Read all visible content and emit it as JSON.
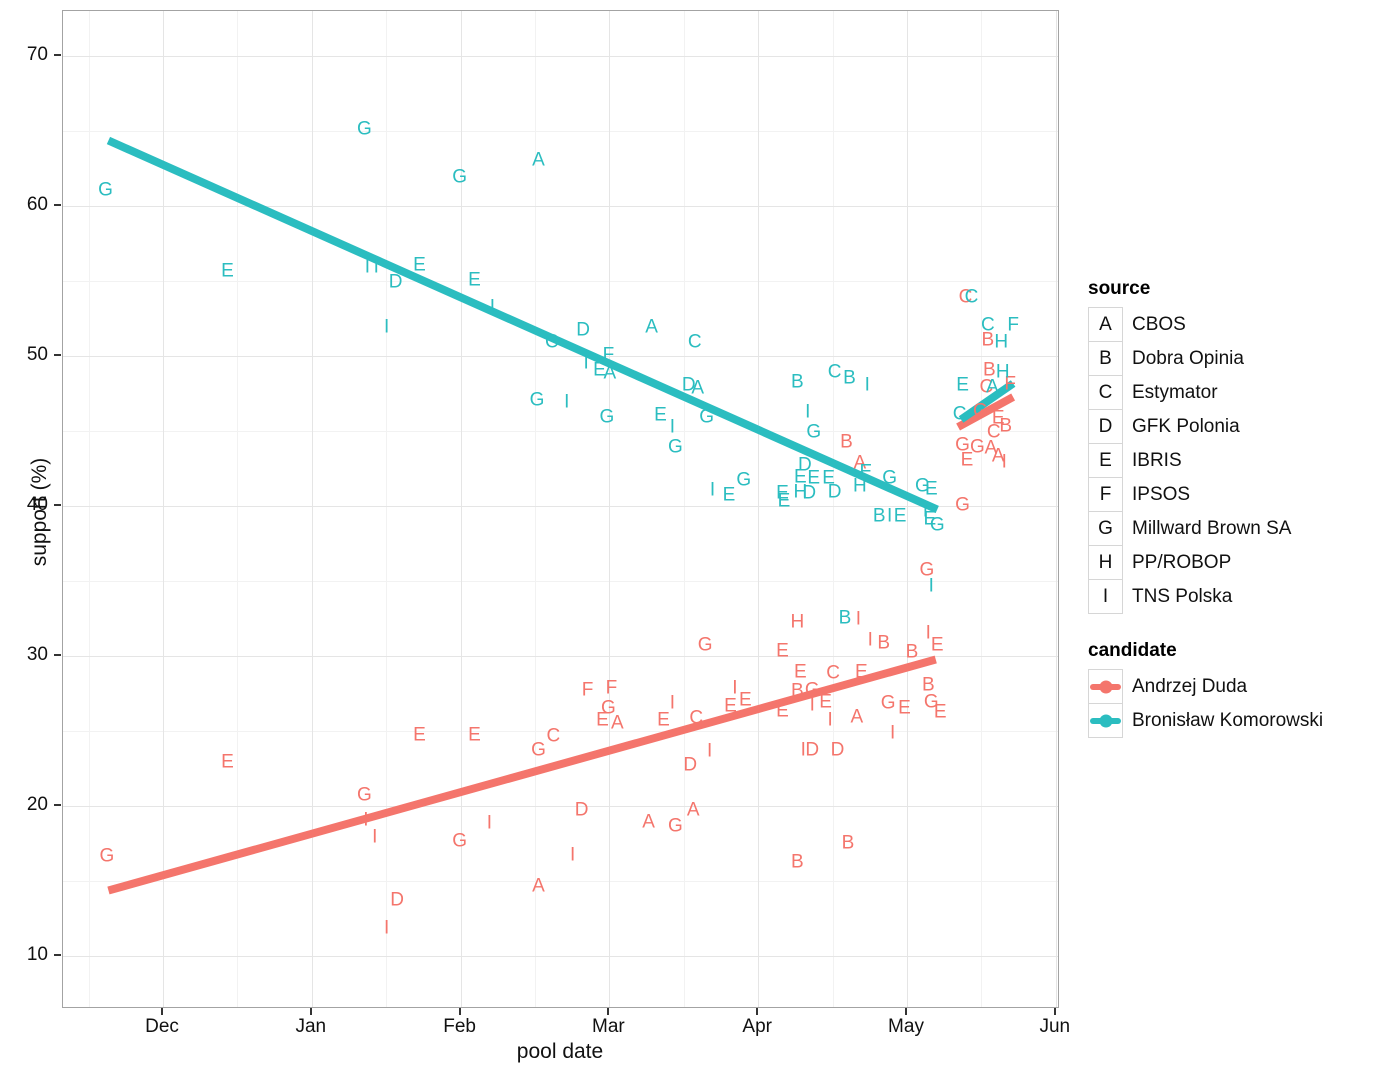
{
  "legend": {
    "source": {
      "title": "source",
      "items": [
        {
          "key": "A",
          "label": "CBOS"
        },
        {
          "key": "B",
          "label": "Dobra Opinia"
        },
        {
          "key": "C",
          "label": "Estymator"
        },
        {
          "key": "D",
          "label": "GFK Polonia"
        },
        {
          "key": "E",
          "label": "IBRIS"
        },
        {
          "key": "F",
          "label": "IPSOS"
        },
        {
          "key": "G",
          "label": "Millward Brown SA"
        },
        {
          "key": "H",
          "label": "PP/ROBOP"
        },
        {
          "key": "I",
          "label": "TNS Polska"
        }
      ]
    },
    "candidate": {
      "title": "candidate",
      "items": [
        {
          "label": "Andrzej Duda",
          "key": "duda",
          "color": "#F4756C"
        },
        {
          "label": "Bronisław Komorowski",
          "key": "komorowski",
          "color": "#2BBDC0"
        }
      ]
    }
  },
  "chart_data": {
    "type": "scatter",
    "x_axis": {
      "label": "pool date",
      "ticks": [
        "Dec",
        "Jan",
        "Feb",
        "Mar",
        "Apr",
        "May",
        "Jun"
      ],
      "tick_positions": [
        0,
        1,
        2,
        3,
        4,
        5,
        6
      ],
      "minor_positions": [
        -0.5,
        0.5,
        1.5,
        2.5,
        3.5,
        4.5,
        5.5
      ]
    },
    "y_axis": {
      "label": "support (%)",
      "ticks": [
        70,
        60,
        50,
        40,
        30,
        20,
        10
      ],
      "minor": [
        65,
        55,
        45,
        35,
        25,
        15
      ],
      "unit": "percent"
    },
    "point_format": [
      "month_index_from_Dec1",
      "support_pct",
      "source_key"
    ],
    "series": [
      {
        "name": "Andrzej Duda",
        "key": "duda",
        "color": "#F4756C",
        "trend": [
          [
            -0.36,
            14.3
          ],
          [
            5.2,
            29.7
          ]
        ],
        "trend_late": [
          [
            5.35,
            45.2
          ],
          [
            5.72,
            47.2
          ]
        ],
        "points": [
          [
            -0.37,
            16.6,
            "G"
          ],
          [
            0.44,
            22.9,
            "E"
          ],
          [
            1.36,
            20.7,
            "G"
          ],
          [
            1.37,
            19.0,
            "I"
          ],
          [
            1.43,
            17.9,
            "I"
          ],
          [
            1.58,
            13.7,
            "D"
          ],
          [
            1.51,
            11.8,
            "I"
          ],
          [
            1.73,
            24.7,
            "E"
          ],
          [
            2.1,
            24.7,
            "E"
          ],
          [
            2.63,
            24.6,
            "C"
          ],
          [
            2.53,
            23.7,
            "G"
          ],
          [
            2.0,
            17.6,
            "G"
          ],
          [
            2.2,
            18.8,
            "I"
          ],
          [
            2.76,
            16.7,
            "I"
          ],
          [
            2.53,
            14.6,
            "A"
          ],
          [
            2.82,
            19.7,
            "D"
          ],
          [
            2.86,
            27.7,
            "F"
          ],
          [
            3.02,
            27.8,
            "F"
          ],
          [
            3.0,
            26.5,
            "G"
          ],
          [
            2.96,
            25.7,
            "E"
          ],
          [
            3.06,
            25.5,
            "A"
          ],
          [
            3.43,
            26.8,
            "I"
          ],
          [
            3.37,
            25.7,
            "E"
          ],
          [
            3.59,
            25.8,
            "C"
          ],
          [
            3.65,
            30.7,
            "G"
          ],
          [
            3.57,
            19.7,
            "A"
          ],
          [
            3.27,
            18.9,
            "A"
          ],
          [
            3.45,
            18.6,
            "G"
          ],
          [
            3.55,
            22.7,
            "D"
          ],
          [
            3.68,
            23.6,
            "I"
          ],
          [
            3.85,
            27.8,
            "I"
          ],
          [
            3.92,
            27.0,
            "E"
          ],
          [
            3.82,
            26.6,
            "E"
          ],
          [
            4.27,
            32.2,
            "H"
          ],
          [
            4.17,
            30.3,
            "E"
          ],
          [
            4.68,
            32.4,
            "I"
          ],
          [
            5.14,
            35.7,
            "G"
          ],
          [
            4.76,
            31.0,
            "I"
          ],
          [
            4.85,
            30.8,
            "B"
          ],
          [
            5.04,
            30.2,
            "B"
          ],
          [
            5.15,
            31.5,
            "I"
          ],
          [
            5.21,
            30.7,
            "E"
          ],
          [
            4.29,
            28.9,
            "E"
          ],
          [
            4.51,
            28.8,
            "C"
          ],
          [
            4.7,
            28.9,
            "E"
          ],
          [
            4.27,
            27.6,
            "B"
          ],
          [
            4.37,
            27.7,
            "G"
          ],
          [
            5.15,
            28.0,
            "B"
          ],
          [
            4.46,
            26.9,
            "E"
          ],
          [
            4.37,
            26.7,
            "I"
          ],
          [
            4.17,
            26.3,
            "E"
          ],
          [
            4.88,
            26.8,
            "G"
          ],
          [
            4.99,
            26.5,
            "E"
          ],
          [
            5.17,
            26.9,
            "G"
          ],
          [
            5.23,
            26.2,
            "E"
          ],
          [
            4.49,
            25.7,
            "I"
          ],
          [
            4.67,
            25.9,
            "A"
          ],
          [
            4.91,
            24.8,
            "I"
          ],
          [
            4.31,
            23.7,
            "I"
          ],
          [
            4.37,
            23.7,
            "D"
          ],
          [
            4.54,
            23.7,
            "D"
          ],
          [
            4.61,
            17.5,
            "B"
          ],
          [
            4.27,
            16.2,
            "B"
          ],
          [
            4.6,
            44.2,
            "B"
          ],
          [
            4.69,
            42.8,
            "A"
          ],
          [
            5.38,
            40.0,
            "G"
          ],
          [
            5.4,
            53.9,
            "C"
          ],
          [
            5.55,
            51.0,
            "B"
          ],
          [
            5.56,
            49.0,
            "B"
          ],
          [
            5.7,
            48.1,
            "F"
          ],
          [
            5.54,
            47.9,
            "C"
          ],
          [
            5.5,
            46.3,
            "G"
          ],
          [
            5.62,
            45.8,
            "E"
          ],
          [
            5.67,
            45.3,
            "B"
          ],
          [
            5.59,
            44.9,
            "C"
          ],
          [
            5.38,
            44.0,
            "G"
          ],
          [
            5.48,
            43.9,
            "G"
          ],
          [
            5.57,
            43.8,
            "A"
          ],
          [
            5.41,
            43.0,
            "E"
          ],
          [
            5.62,
            43.3,
            "A"
          ],
          [
            5.66,
            42.9,
            "I"
          ]
        ]
      },
      {
        "name": "Bronisław Komorowski",
        "key": "komorowski",
        "color": "#2BBDC0",
        "trend": [
          [
            -0.36,
            64.3
          ],
          [
            5.21,
            39.7
          ]
        ],
        "trend_late": [
          [
            5.37,
            45.7
          ],
          [
            5.72,
            48.1
          ]
        ],
        "points": [
          [
            -0.38,
            61.0,
            "G"
          ],
          [
            0.44,
            55.6,
            "E"
          ],
          [
            1.36,
            65.1,
            "G"
          ],
          [
            2.0,
            61.9,
            "G"
          ],
          [
            2.53,
            63.0,
            "A"
          ],
          [
            1.38,
            55.9,
            "I"
          ],
          [
            1.44,
            55.9,
            "I"
          ],
          [
            1.57,
            54.9,
            "D"
          ],
          [
            1.73,
            56.0,
            "E"
          ],
          [
            2.1,
            55.0,
            "E"
          ],
          [
            1.51,
            51.9,
            "I"
          ],
          [
            2.22,
            53.2,
            "I"
          ],
          [
            2.62,
            50.9,
            "C"
          ],
          [
            2.83,
            51.7,
            "D"
          ],
          [
            3.29,
            51.9,
            "A"
          ],
          [
            3.58,
            50.9,
            "C"
          ],
          [
            3.0,
            50.0,
            "F"
          ],
          [
            2.94,
            49.0,
            "E"
          ],
          [
            3.01,
            48.8,
            "A"
          ],
          [
            2.85,
            49.5,
            "I"
          ],
          [
            2.52,
            47.0,
            "G"
          ],
          [
            2.72,
            46.9,
            "I"
          ],
          [
            2.99,
            45.9,
            "G"
          ],
          [
            3.54,
            48.0,
            "D"
          ],
          [
            3.6,
            47.8,
            "A"
          ],
          [
            3.35,
            46.0,
            "E"
          ],
          [
            3.43,
            45.2,
            "I"
          ],
          [
            3.66,
            45.9,
            "G"
          ],
          [
            3.45,
            43.9,
            "G"
          ],
          [
            3.7,
            41.0,
            "I"
          ],
          [
            3.81,
            40.7,
            "E"
          ],
          [
            3.91,
            41.7,
            "G"
          ],
          [
            4.27,
            48.2,
            "B"
          ],
          [
            4.52,
            48.9,
            "C"
          ],
          [
            4.62,
            48.5,
            "B"
          ],
          [
            4.74,
            48.0,
            "I"
          ],
          [
            4.34,
            46.2,
            "I"
          ],
          [
            4.38,
            44.9,
            "G"
          ],
          [
            4.32,
            42.7,
            "D"
          ],
          [
            4.29,
            41.9,
            "E"
          ],
          [
            4.38,
            41.8,
            "E"
          ],
          [
            4.48,
            41.8,
            "E"
          ],
          [
            4.17,
            40.8,
            "E"
          ],
          [
            4.29,
            40.9,
            "H"
          ],
          [
            4.35,
            40.8,
            "D"
          ],
          [
            4.52,
            40.9,
            "D"
          ],
          [
            4.18,
            40.3,
            "E"
          ],
          [
            4.73,
            42.2,
            "E"
          ],
          [
            4.69,
            41.3,
            "H"
          ],
          [
            4.89,
            41.8,
            "G"
          ],
          [
            5.11,
            41.3,
            "G"
          ],
          [
            5.17,
            41.1,
            "E"
          ],
          [
            5.13,
            39.6,
            "I"
          ],
          [
            4.82,
            39.3,
            "B"
          ],
          [
            4.89,
            39.3,
            "I"
          ],
          [
            4.96,
            39.3,
            "E"
          ],
          [
            5.16,
            39.1,
            "E"
          ],
          [
            5.21,
            38.7,
            "G"
          ],
          [
            4.59,
            32.5,
            "B"
          ],
          [
            5.17,
            34.6,
            "I"
          ],
          [
            5.44,
            53.9,
            "C"
          ],
          [
            5.55,
            52.0,
            "C"
          ],
          [
            5.72,
            52.0,
            "F"
          ],
          [
            5.64,
            50.9,
            "H"
          ],
          [
            5.65,
            48.9,
            "H"
          ],
          [
            5.38,
            48.0,
            "E"
          ],
          [
            5.58,
            47.9,
            "A"
          ],
          [
            5.36,
            46.1,
            "C"
          ]
        ]
      }
    ]
  }
}
